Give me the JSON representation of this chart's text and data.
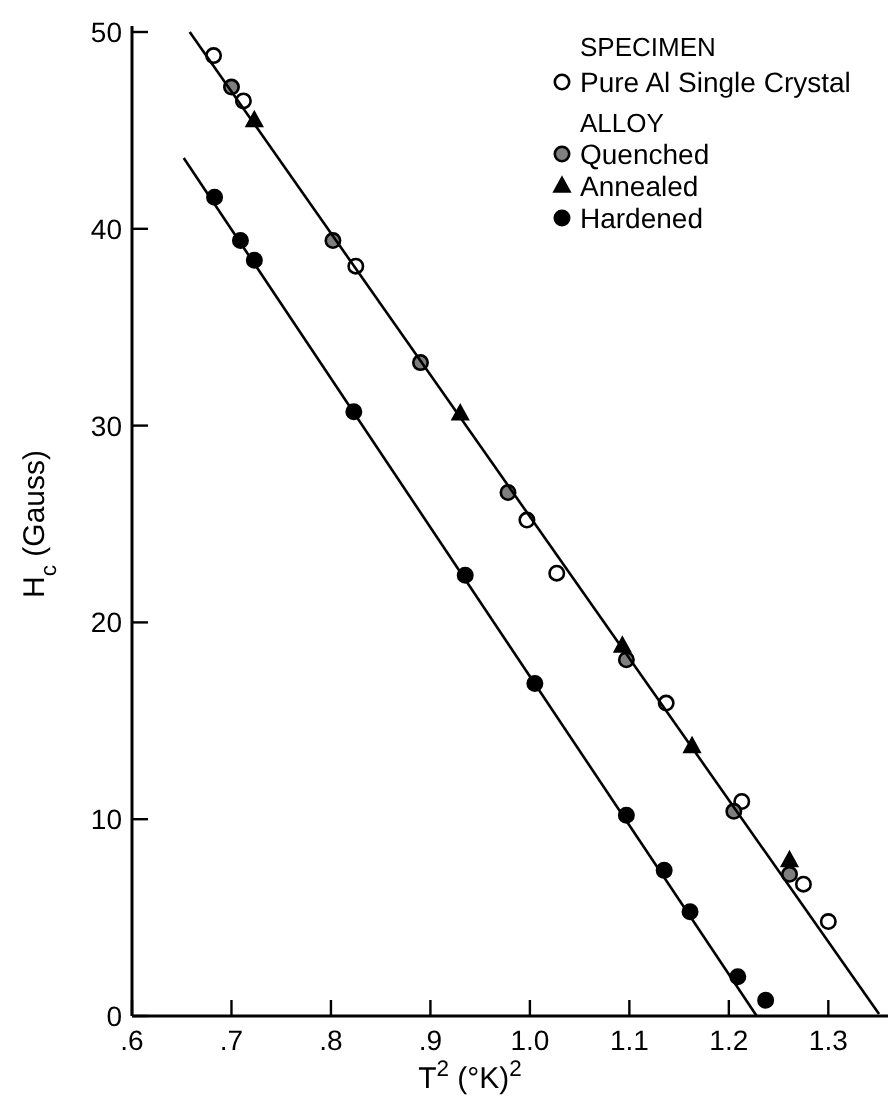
{
  "chart_data": {
    "type": "scatter",
    "xlabel": "T$^{2}$ (°K)$^{2}$",
    "ylabel": "H$_{c}$ (Gauss)",
    "xlim": [
      0.6,
      1.36
    ],
    "ylim": [
      0,
      50
    ],
    "xticks": [
      {
        "value": 0.6,
        "label": ".6"
      },
      {
        "value": 0.7,
        "label": ".7"
      },
      {
        "value": 0.8,
        "label": ".8"
      },
      {
        "value": 0.9,
        "label": ".9"
      },
      {
        "value": 1.0,
        "label": "1.0"
      },
      {
        "value": 1.1,
        "label": "1.1"
      },
      {
        "value": 1.2,
        "label": "1.2"
      },
      {
        "value": 1.3,
        "label": "1.3"
      }
    ],
    "yticks": [
      0,
      10,
      20,
      30,
      40,
      50
    ],
    "grid": false,
    "legend": "top right",
    "legend_title": "SPECIMEN",
    "annotations": [
      "ALLOY"
    ],
    "series": [
      {
        "name": "Pure Al Single Crystal",
        "marker": "circle",
        "color": "#ffffff",
        "x": [
          0.682,
          0.712,
          0.825,
          0.997,
          1.027,
          1.137,
          1.213,
          1.275,
          1.3
        ],
        "values": [
          48.8,
          46.5,
          38.1,
          25.2,
          22.5,
          15.9,
          10.9,
          6.7,
          4.8
        ]
      },
      {
        "name": "Quenched",
        "marker": "circle",
        "color": "#7f7f7f",
        "x": [
          0.7,
          0.802,
          0.89,
          0.978,
          1.097,
          1.205,
          1.261
        ],
        "values": [
          47.2,
          39.4,
          33.2,
          26.6,
          18.1,
          10.4,
          7.2
        ]
      },
      {
        "name": "Annealed",
        "marker": "triangle",
        "color": "#000000",
        "x": [
          0.723,
          0.93,
          1.093,
          1.163,
          1.261
        ],
        "values": [
          45.5,
          30.6,
          18.8,
          13.7,
          7.9
        ]
      },
      {
        "name": "Hardened",
        "marker": "circle",
        "color": "#000000",
        "x": [
          0.683,
          0.709,
          0.723,
          0.823,
          0.935,
          1.005,
          1.097,
          1.135,
          1.161,
          1.209,
          1.237
        ],
        "values": [
          41.6,
          39.4,
          38.4,
          30.7,
          22.4,
          16.9,
          10.2,
          7.4,
          5.3,
          2.0,
          0.8
        ]
      },
      {
        "type": "line",
        "color": "#000000",
        "line_style": "solid",
        "x": [
          0.658,
          1.351
        ],
        "values": [
          50.0,
          0.1
        ]
      },
      {
        "type": "line",
        "color": "#000000",
        "line_style": "solid",
        "x": [
          0.652,
          1.228
        ],
        "values": [
          43.6,
          0
        ]
      }
    ]
  }
}
